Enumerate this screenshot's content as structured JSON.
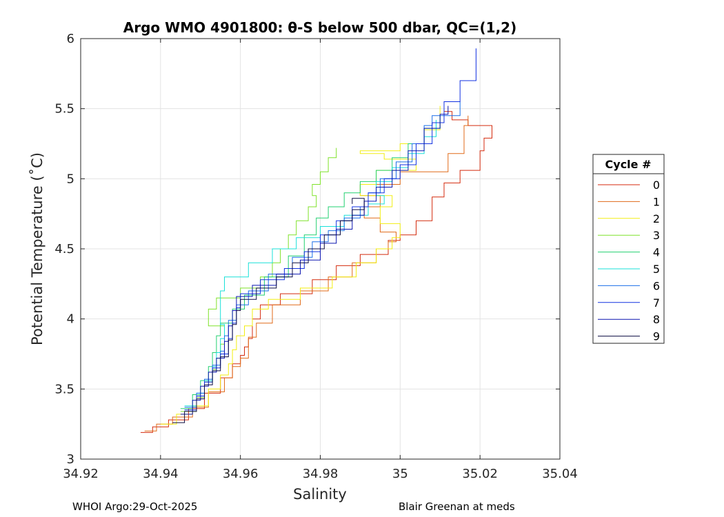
{
  "chart_data": {
    "type": "line",
    "title": "Argo WMO 4901800: θ-S below 500 dbar,  QC=(1,2)",
    "xlabel": "Salinity",
    "ylabel": "Potential Temperature (˚C)",
    "xlim": [
      34.92,
      35.04
    ],
    "ylim": [
      3,
      6
    ],
    "xticks": [
      "34.92",
      "34.94",
      "34.96",
      "34.98",
      "35",
      "35.02",
      "35.04"
    ],
    "yticks": [
      "3",
      "3.5",
      "4",
      "4.5",
      "5",
      "5.5",
      "6"
    ],
    "grid": true,
    "legend": {
      "title": "Cycle #",
      "position": "right"
    },
    "series": [
      {
        "name": "0",
        "color": "#d42a0c",
        "points": [
          [
            34.935,
            3.19
          ],
          [
            34.938,
            3.23
          ],
          [
            34.942,
            3.28
          ],
          [
            34.947,
            3.36
          ],
          [
            34.951,
            3.47
          ],
          [
            34.955,
            3.58
          ],
          [
            34.958,
            3.68
          ],
          [
            34.96,
            3.74
          ],
          [
            34.961,
            3.8
          ],
          [
            34.962,
            3.86
          ],
          [
            34.963,
            3.93
          ],
          [
            34.963,
            4.0
          ],
          [
            34.965,
            4.1
          ],
          [
            34.97,
            4.18
          ],
          [
            34.978,
            4.28
          ],
          [
            34.984,
            4.38
          ],
          [
            34.99,
            4.46
          ],
          [
            34.997,
            4.56
          ],
          [
            35.0,
            4.6
          ],
          [
            35.004,
            4.7
          ],
          [
            35.008,
            4.87
          ],
          [
            35.011,
            4.97
          ],
          [
            35.015,
            5.06
          ],
          [
            35.02,
            5.2
          ],
          [
            35.021,
            5.29
          ],
          [
            35.023,
            5.38
          ],
          [
            35.018,
            5.38
          ],
          [
            35.017,
            5.42
          ],
          [
            35.013,
            5.48
          ],
          [
            35.011,
            5.52
          ]
        ]
      },
      {
        "name": "1",
        "color": "#e06a18",
        "points": [
          [
            34.936,
            3.2
          ],
          [
            34.939,
            3.25
          ],
          [
            34.943,
            3.3
          ],
          [
            34.948,
            3.37
          ],
          [
            34.952,
            3.48
          ],
          [
            34.956,
            3.58
          ],
          [
            34.958,
            3.66
          ],
          [
            34.96,
            3.72
          ],
          [
            34.962,
            3.8
          ],
          [
            34.962,
            3.87
          ],
          [
            34.964,
            3.97
          ],
          [
            34.968,
            4.1
          ],
          [
            34.975,
            4.2
          ],
          [
            34.982,
            4.3
          ],
          [
            34.988,
            4.4
          ],
          [
            34.994,
            4.5
          ],
          [
            34.997,
            4.55
          ],
          [
            34.999,
            4.62
          ],
          [
            34.995,
            4.72
          ],
          [
            34.991,
            4.8
          ],
          [
            34.995,
            4.88
          ],
          [
            34.99,
            4.96
          ],
          [
            35.0,
            5.05
          ],
          [
            35.012,
            5.18
          ],
          [
            35.016,
            5.3
          ],
          [
            35.016,
            5.38
          ],
          [
            35.017,
            5.45
          ]
        ]
      },
      {
        "name": "2",
        "color": "#f2ee10",
        "points": [
          [
            34.94,
            3.25
          ],
          [
            34.944,
            3.32
          ],
          [
            34.948,
            3.38
          ],
          [
            34.952,
            3.5
          ],
          [
            34.955,
            3.6
          ],
          [
            34.957,
            3.68
          ],
          [
            34.958,
            3.78
          ],
          [
            34.959,
            3.88
          ],
          [
            34.961,
            3.95
          ],
          [
            34.963,
            4.07
          ],
          [
            34.967,
            4.14
          ],
          [
            34.975,
            4.22
          ],
          [
            34.983,
            4.3
          ],
          [
            34.989,
            4.4
          ],
          [
            34.994,
            4.5
          ],
          [
            34.998,
            4.58
          ],
          [
            35.0,
            4.68
          ],
          [
            34.995,
            4.8
          ],
          [
            34.998,
            4.88
          ],
          [
            34.99,
            4.96
          ],
          [
            34.994,
            5.06
          ],
          [
            35.004,
            5.14
          ],
          [
            34.996,
            5.18
          ],
          [
            34.99,
            5.2
          ],
          [
            35.0,
            5.25
          ],
          [
            35.006,
            5.35
          ],
          [
            35.01,
            5.52
          ]
        ]
      },
      {
        "name": "3",
        "color": "#7fe22a",
        "points": [
          [
            34.945,
            3.34
          ],
          [
            34.949,
            3.44
          ],
          [
            34.951,
            3.55
          ],
          [
            34.953,
            3.64
          ],
          [
            34.954,
            3.72
          ],
          [
            34.955,
            3.82
          ],
          [
            34.956,
            3.95
          ],
          [
            34.952,
            4.07
          ],
          [
            34.954,
            4.15
          ],
          [
            34.96,
            4.22
          ],
          [
            34.965,
            4.3
          ],
          [
            34.968,
            4.4
          ],
          [
            34.97,
            4.5
          ],
          [
            34.972,
            4.6
          ],
          [
            34.974,
            4.7
          ],
          [
            34.977,
            4.8
          ],
          [
            34.979,
            4.88
          ],
          [
            34.978,
            4.96
          ],
          [
            34.98,
            5.05
          ],
          [
            34.982,
            5.15
          ],
          [
            34.984,
            5.22
          ]
        ]
      },
      {
        "name": "4",
        "color": "#22d070",
        "points": [
          [
            34.945,
            3.36
          ],
          [
            34.948,
            3.46
          ],
          [
            34.95,
            3.56
          ],
          [
            34.952,
            3.66
          ],
          [
            34.953,
            3.76
          ],
          [
            34.954,
            3.88
          ],
          [
            34.955,
            3.97
          ],
          [
            34.958,
            4.07
          ],
          [
            34.961,
            4.17
          ],
          [
            34.966,
            4.3
          ],
          [
            34.972,
            4.45
          ],
          [
            34.976,
            4.6
          ],
          [
            34.979,
            4.72
          ],
          [
            34.982,
            4.8
          ],
          [
            34.986,
            4.9
          ],
          [
            34.99,
            4.98
          ],
          [
            34.994,
            5.06
          ],
          [
            34.998,
            5.15
          ],
          [
            35.002,
            5.25
          ],
          [
            35.006,
            5.36
          ],
          [
            35.01,
            5.45
          ]
        ]
      },
      {
        "name": "5",
        "color": "#18e0d8",
        "points": [
          [
            34.946,
            3.38
          ],
          [
            34.949,
            3.47
          ],
          [
            34.951,
            3.56
          ],
          [
            34.953,
            3.66
          ],
          [
            34.954,
            3.76
          ],
          [
            34.955,
            3.86
          ],
          [
            34.956,
            3.96
          ],
          [
            34.955,
            4.1
          ],
          [
            34.955,
            4.2
          ],
          [
            34.956,
            4.3
          ],
          [
            34.962,
            4.4
          ],
          [
            34.968,
            4.5
          ],
          [
            34.974,
            4.58
          ],
          [
            34.98,
            4.66
          ],
          [
            34.986,
            4.74
          ],
          [
            34.992,
            4.82
          ],
          [
            34.996,
            4.88
          ],
          [
            34.994,
            4.98
          ],
          [
            34.998,
            5.08
          ],
          [
            35.002,
            5.18
          ],
          [
            35.006,
            5.3
          ],
          [
            35.009,
            5.42
          ]
        ]
      },
      {
        "name": "6",
        "color": "#1a6ee8",
        "points": [
          [
            34.946,
            3.37
          ],
          [
            34.949,
            3.47
          ],
          [
            34.951,
            3.57
          ],
          [
            34.953,
            3.67
          ],
          [
            34.955,
            3.77
          ],
          [
            34.956,
            3.88
          ],
          [
            34.957,
            3.99
          ],
          [
            34.959,
            4.1
          ],
          [
            34.962,
            4.2
          ],
          [
            34.967,
            4.32
          ],
          [
            34.973,
            4.44
          ],
          [
            34.978,
            4.55
          ],
          [
            34.982,
            4.63
          ],
          [
            34.986,
            4.72
          ],
          [
            34.99,
            4.8
          ],
          [
            34.992,
            4.9
          ],
          [
            34.995,
            5.0
          ],
          [
            34.999,
            5.12
          ],
          [
            35.003,
            5.25
          ],
          [
            35.006,
            5.38
          ],
          [
            35.008,
            5.45
          ],
          [
            35.015,
            5.55
          ]
        ]
      },
      {
        "name": "7",
        "color": "#1030e0",
        "points": [
          [
            34.946,
            3.35
          ],
          [
            34.949,
            3.45
          ],
          [
            34.951,
            3.55
          ],
          [
            34.953,
            3.65
          ],
          [
            34.955,
            3.75
          ],
          [
            34.957,
            3.86
          ],
          [
            34.958,
            3.97
          ],
          [
            34.959,
            4.08
          ],
          [
            34.96,
            4.18
          ],
          [
            34.965,
            4.28
          ],
          [
            34.971,
            4.36
          ],
          [
            34.976,
            4.48
          ],
          [
            34.98,
            4.6
          ],
          [
            34.984,
            4.7
          ],
          [
            34.988,
            4.8
          ],
          [
            34.992,
            4.9
          ],
          [
            34.996,
            5.0
          ],
          [
            35.0,
            5.1
          ],
          [
            35.004,
            5.25
          ],
          [
            35.008,
            5.4
          ],
          [
            35.011,
            5.55
          ],
          [
            35.015,
            5.7
          ],
          [
            35.019,
            5.93
          ]
        ]
      },
      {
        "name": "8",
        "color": "#0a14b0",
        "points": [
          [
            34.945,
            3.32
          ],
          [
            34.948,
            3.42
          ],
          [
            34.95,
            3.52
          ],
          [
            34.952,
            3.62
          ],
          [
            34.954,
            3.72
          ],
          [
            34.956,
            3.84
          ],
          [
            34.957,
            3.95
          ],
          [
            34.958,
            4.06
          ],
          [
            34.959,
            4.16
          ],
          [
            34.963,
            4.24
          ],
          [
            34.969,
            4.32
          ],
          [
            34.975,
            4.42
          ],
          [
            34.98,
            4.54
          ],
          [
            34.984,
            4.64
          ],
          [
            34.988,
            4.74
          ],
          [
            34.991,
            4.84
          ],
          [
            34.994,
            4.94
          ],
          [
            34.998,
            5.06
          ],
          [
            35.002,
            5.2
          ],
          [
            35.006,
            5.36
          ],
          [
            35.01,
            5.46
          ],
          [
            35.012,
            5.52
          ]
        ]
      },
      {
        "name": "9",
        "color": "#0a0a40",
        "points": [
          [
            34.943,
            3.26
          ],
          [
            34.946,
            3.34
          ],
          [
            34.949,
            3.43
          ],
          [
            34.951,
            3.53
          ],
          [
            34.953,
            3.63
          ],
          [
            34.955,
            3.73
          ],
          [
            34.957,
            3.85
          ],
          [
            34.958,
            3.96
          ],
          [
            34.959,
            4.06
          ],
          [
            34.96,
            4.14
          ],
          [
            34.964,
            4.22
          ],
          [
            34.969,
            4.3
          ],
          [
            34.973,
            4.4
          ],
          [
            34.977,
            4.5
          ],
          [
            34.981,
            4.6
          ],
          [
            34.985,
            4.7
          ],
          [
            34.988,
            4.78
          ],
          [
            34.991,
            4.86
          ],
          [
            34.988,
            4.82
          ]
        ]
      }
    ]
  },
  "footer": {
    "left": "WHOI Argo:29-Oct-2025",
    "right": "Blair Greenan at meds"
  }
}
